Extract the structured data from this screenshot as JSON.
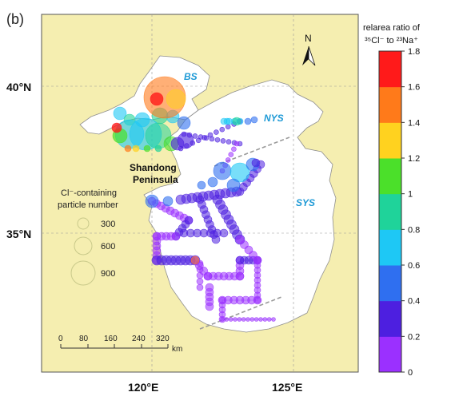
{
  "panel_label": "(b)",
  "map": {
    "lat_labels": [
      "40°N",
      "35°N"
    ],
    "lon_labels": [
      "120°E",
      "125°E"
    ],
    "sea_labels": [
      "BS",
      "NYS",
      "SYS"
    ],
    "place_label": [
      "Shandong",
      "Peninsula"
    ],
    "north_label": "N",
    "scale_bar": {
      "ticks": [
        "0",
        "80",
        "160",
        "240",
        "320"
      ],
      "unit": "km"
    },
    "colors": {
      "land": "#f5eeb0",
      "sea": "#ffffff",
      "coast": "#8f8f8f",
      "route": "#9a9a9a",
      "sea_label": "#1e9ad6"
    }
  },
  "size_legend": {
    "title": [
      "Cl⁻-containing",
      "particle number"
    ],
    "items": [
      "300",
      "600",
      "900"
    ]
  },
  "colorbar": {
    "title_line1": "relarea ratio of",
    "title_line2": "³⁵Cl⁻ to ²³Na⁺",
    "ticks": [
      "1.8",
      "1.6",
      "1.4",
      "1.2",
      "1",
      "0.8",
      "0.6",
      "0.4",
      "0.2",
      "0"
    ],
    "range": [
      0,
      1.8
    ],
    "colors": [
      "#9b30ff",
      "#4d1fe0",
      "#2f6ff0",
      "#1ec8f5",
      "#1fd39a",
      "#4be02a",
      "#ffd21f",
      "#ff7a1a",
      "#ff1a1a"
    ]
  }
}
